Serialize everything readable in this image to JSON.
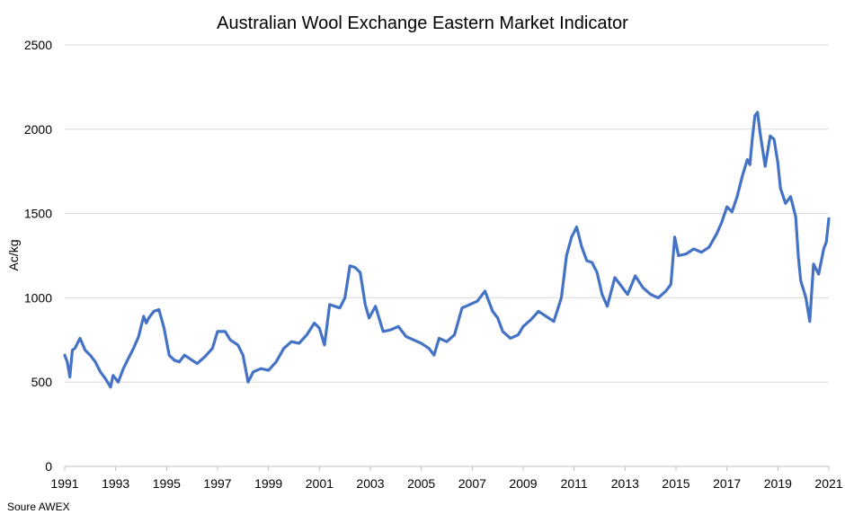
{
  "chart_data": {
    "type": "line",
    "title": "Australian Wool Exchange Eastern Market Indicator",
    "ylabel": "Ac/kg",
    "xlabel": "",
    "xlim": [
      1991,
      2021
    ],
    "ylim": [
      0,
      2500
    ],
    "y_ticks": [
      "0",
      "500",
      "1000",
      "1500",
      "2000",
      "2500"
    ],
    "x_ticks": [
      "1991",
      "1993",
      "1995",
      "1997",
      "1999",
      "2001",
      "2003",
      "2005",
      "2007",
      "2009",
      "2011",
      "2013",
      "2015",
      "2017",
      "2019",
      "2021"
    ],
    "grid": "horizontal",
    "legend": "none",
    "series_color": "#4472c4",
    "series": [
      {
        "x": [
          1991.0,
          1991.1,
          1991.2,
          1991.3,
          1991.4,
          1991.6,
          1991.8,
          1992.0,
          1992.2,
          1992.4,
          1992.6,
          1992.8,
          1992.9,
          1993.1,
          1993.3,
          1993.5,
          1993.7,
          1993.9,
          1994.1,
          1994.2,
          1994.3,
          1994.5,
          1994.7,
          1994.9,
          1995.1,
          1995.3,
          1995.5,
          1995.7,
          1995.9,
          1996.2,
          1996.5,
          1996.8,
          1997.0,
          1997.3,
          1997.5,
          1997.8,
          1998.0,
          1998.2,
          1998.4,
          1998.7,
          1999.0,
          1999.3,
          1999.6,
          1999.9,
          2000.2,
          2000.5,
          2000.8,
          2001.0,
          2001.2,
          2001.4,
          2001.6,
          2001.8,
          2002.0,
          2002.2,
          2002.4,
          2002.6,
          2002.8,
          2002.95,
          2003.2,
          2003.5,
          2003.8,
          2004.1,
          2004.4,
          2004.7,
          2005.0,
          2005.3,
          2005.5,
          2005.7,
          2006.0,
          2006.3,
          2006.6,
          2006.9,
          2007.2,
          2007.5,
          2007.8,
          2008.0,
          2008.2,
          2008.5,
          2008.8,
          2009.0,
          2009.3,
          2009.6,
          2009.9,
          2010.2,
          2010.5,
          2010.7,
          2010.9,
          2011.0,
          2011.1,
          2011.3,
          2011.5,
          2011.7,
          2011.9,
          2012.1,
          2012.3,
          2012.6,
          2012.9,
          2013.1,
          2013.4,
          2013.7,
          2014.0,
          2014.3,
          2014.6,
          2014.8,
          2014.95,
          2015.1,
          2015.4,
          2015.7,
          2016.0,
          2016.3,
          2016.6,
          2016.8,
          2017.0,
          2017.2,
          2017.4,
          2017.6,
          2017.8,
          2017.9,
          2018.0,
          2018.1,
          2018.2,
          2018.3,
          2018.5,
          2018.7,
          2018.85,
          2019.0,
          2019.1,
          2019.3,
          2019.5,
          2019.7,
          2019.8,
          2019.9,
          2020.0,
          2020.1,
          2020.25,
          2020.4,
          2020.6,
          2020.8,
          2020.9,
          2021.0
        ],
        "values": [
          660,
          620,
          530,
          690,
          700,
          760,
          690,
          660,
          620,
          560,
          520,
          470,
          540,
          500,
          580,
          640,
          700,
          770,
          890,
          850,
          880,
          920,
          930,
          820,
          660,
          630,
          620,
          660,
          640,
          610,
          650,
          700,
          800,
          800,
          750,
          720,
          660,
          500,
          560,
          580,
          570,
          620,
          700,
          740,
          730,
          780,
          850,
          820,
          720,
          960,
          950,
          940,
          1000,
          1190,
          1180,
          1150,
          960,
          880,
          950,
          800,
          810,
          830,
          770,
          750,
          730,
          700,
          660,
          760,
          740,
          780,
          940,
          960,
          980,
          1040,
          920,
          880,
          800,
          760,
          780,
          830,
          870,
          920,
          890,
          860,
          1000,
          1250,
          1360,
          1390,
          1420,
          1300,
          1220,
          1210,
          1150,
          1020,
          950,
          1120,
          1060,
          1020,
          1130,
          1060,
          1020,
          1000,
          1040,
          1080,
          1360,
          1250,
          1260,
          1290,
          1270,
          1300,
          1380,
          1450,
          1540,
          1510,
          1600,
          1720,
          1820,
          1790,
          1950,
          2080,
          2100,
          1980,
          1780,
          1960,
          1940,
          1800,
          1650,
          1560,
          1600,
          1480,
          1250,
          1100,
          1050,
          1000,
          860,
          1200,
          1140,
          1290,
          1330,
          1470
        ]
      }
    ]
  },
  "footer": {
    "source": "Soure AWEX"
  }
}
